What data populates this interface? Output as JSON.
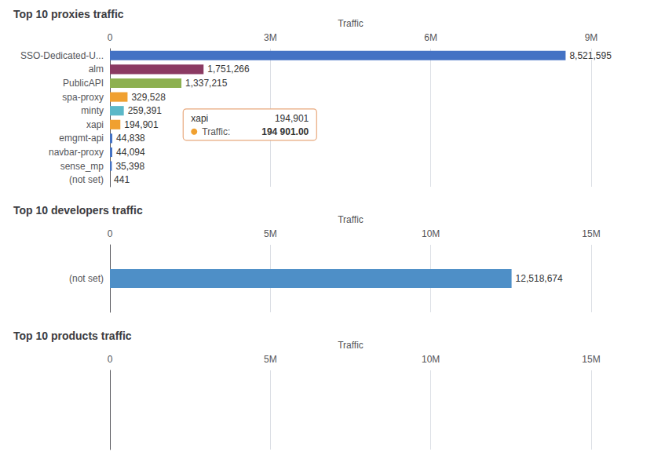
{
  "chart_data": [
    {
      "type": "bar",
      "orientation": "horizontal",
      "title": "Top 10 proxies traffic",
      "xlabel": "Traffic",
      "categories": [
        "SSO-Dedicated-U...",
        "alm",
        "PublicAPI",
        "spa-proxy",
        "minty",
        "xapi",
        "emgmt-api",
        "navbar-proxy",
        "sense_mp",
        "(not set)"
      ],
      "values": [
        8521595,
        1751266,
        1337215,
        329528,
        259391,
        194901,
        44838,
        44094,
        35398,
        441
      ],
      "value_labels": [
        "8,521,595",
        "1,751,266",
        "1,337,215",
        "329,528",
        "259,391",
        "194,901",
        "44,838",
        "44,094",
        "35,398",
        "441"
      ],
      "data_labels": true,
      "colors": [
        "#4472c4",
        "#8b3a62",
        "#8db050",
        "#f0a030",
        "#5bb8c8",
        "#f0a030",
        "#4472c4",
        "#4472c4",
        "#4472c4",
        "#4472c4"
      ],
      "xlim": [
        0,
        9000000
      ],
      "xticks": [
        0,
        {
          "value": 3000000,
          "label": "3M"
        },
        {
          "value": 6000000,
          "label": "6M"
        },
        {
          "value": 9000000,
          "label": "9M"
        }
      ],
      "grid": true,
      "annotations": [
        "xapi",
        "194,901",
        "Traffic:",
        "194 901.00"
      ]
    },
    {
      "type": "bar",
      "orientation": "horizontal",
      "title": "Top 10 developers traffic",
      "xlabel": "Traffic",
      "categories": [
        "(not set)"
      ],
      "values": [
        12518674
      ],
      "value_labels": [
        "12,518,674"
      ],
      "data_labels": true,
      "colors": [
        "#4e8fc7"
      ],
      "xlim": [
        0,
        15000000
      ],
      "xticks": [
        0,
        {
          "value": 5000000,
          "label": "5M"
        },
        {
          "value": 10000000,
          "label": "10M"
        },
        {
          "value": 15000000,
          "label": "15M"
        }
      ],
      "grid": true
    },
    {
      "type": "bar",
      "orientation": "horizontal",
      "title": "Top 10 products traffic",
      "xlabel": "Traffic",
      "xlim": [
        0,
        15000000
      ],
      "xticks": [
        0,
        {
          "value": 5000000,
          "label": "5M"
        },
        {
          "value": 10000000,
          "label": "10M"
        },
        {
          "value": 15000000,
          "label": "15M"
        }
      ],
      "grid": true
    }
  ]
}
